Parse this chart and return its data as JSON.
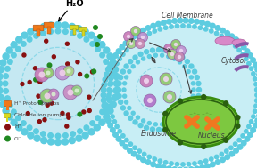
{
  "bg_color": "#ffffff",
  "cell_fill_color": "#c8eef5",
  "cell_inner_fill": "#d8f5fa",
  "membrane_dot_color": "#5dcce0",
  "dashed_ring_color": "#8cd8e8",
  "proton_pump_color": "#f07818",
  "chloride_pump_color": "#d8d820",
  "h_plus_color": "#881010",
  "cl_color": "#208820",
  "nucleus_green": "#7dc840",
  "nucleus_border": "#3a8c10",
  "nucleus_dark_rim": "#2a6010",
  "chromosome_color": "#f07820",
  "arrow_color": "#404040",
  "text_color": "#404040",
  "cargo_colors": [
    "#c880b8",
    "#90c870",
    "#c890d8",
    "#90c870"
  ],
  "cargo_edge": "#9060a0",
  "cargo_inner": "#e8d0f0",
  "pink_organelle": "#d080c0",
  "purple_er": "#9060b0",
  "title_h2o": "H₂O",
  "label_cell_membrane": "Cell Membrane",
  "label_cytosol": "Cytosol",
  "label_endosome": "Endosome",
  "label_nucleus": "Nucleus",
  "legend_items": [
    {
      "label": "H⁺ Proton pumps",
      "color": "#f07818"
    },
    {
      "label": "Chloride ion pumps",
      "color": "#d8d820"
    },
    {
      "label": "H⁺",
      "color": "#881010"
    },
    {
      "label": "Cl⁻",
      "color": "#208820"
    }
  ],
  "figsize": [
    2.88,
    1.89
  ],
  "dpi": 100
}
